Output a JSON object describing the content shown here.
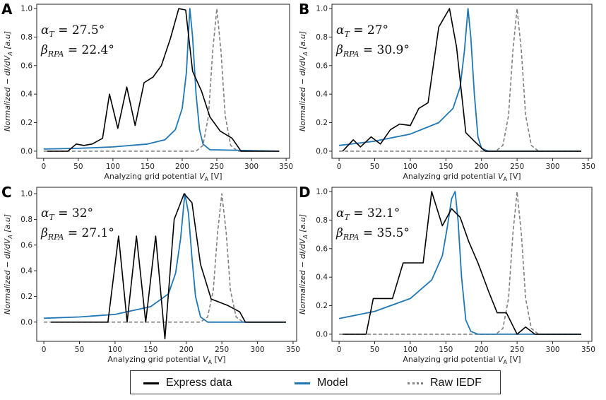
{
  "legend": {
    "express_label": "Express data",
    "model_label": "Model",
    "raw_label": "Raw IEDF",
    "express_color": "#000000",
    "model_color": "#1f77b4",
    "raw_color": "#808080"
  },
  "chart_data": [
    {
      "panel": "A",
      "type": "line",
      "xlabel": "Analyzing grid potential V_A [V]",
      "ylabel": "Normalized − dI/dV_A [a.u]",
      "xlim": [
        -10,
        355
      ],
      "ylim": [
        -0.05,
        1.03
      ],
      "xticks": [
        0,
        50,
        100,
        150,
        200,
        250,
        300,
        350
      ],
      "xtick_labels": [
        "0",
        "50",
        "100",
        "150",
        "200",
        "250",
        "300",
        "350"
      ],
      "yticks": [
        0,
        0.2,
        0.4,
        0.6,
        0.8,
        1.0
      ],
      "ytick_labels": [
        "0.0",
        "0.2",
        "0.4",
        "0.6",
        "0.8",
        "1.0"
      ],
      "annotation": {
        "alpha_label": "α_T",
        "alpha_value": "27.5°",
        "beta_label": "β_RPA",
        "beta_value": "22.4°"
      },
      "series": [
        {
          "name": "Express data",
          "x": [
            5,
            35,
            47,
            58,
            70,
            85,
            95,
            107,
            120,
            132,
            145,
            158,
            170,
            183,
            195,
            205,
            215,
            228,
            240,
            255,
            272,
            285,
            340
          ],
          "y": [
            0,
            0,
            0.05,
            0.04,
            0.05,
            0.09,
            0.4,
            0.16,
            0.45,
            0.18,
            0.48,
            0.52,
            0.6,
            0.79,
            1.0,
            0.99,
            0.56,
            0.42,
            0.24,
            0.14,
            0.09,
            0.0,
            0.0
          ]
        },
        {
          "name": "Model",
          "x": [
            0,
            50,
            100,
            150,
            175,
            190,
            200,
            206,
            211,
            215,
            220,
            225,
            230,
            240,
            340
          ],
          "y": [
            0.015,
            0.02,
            0.03,
            0.05,
            0.08,
            0.15,
            0.3,
            0.55,
            1.0,
            0.8,
            0.4,
            0.15,
            0.05,
            0.01,
            0.0
          ]
        },
        {
          "name": "Raw IEDF",
          "x": [
            0,
            200,
            220,
            230,
            238,
            244,
            250,
            256,
            262,
            270,
            280,
            300,
            340
          ],
          "y": [
            0,
            0,
            0.0,
            0.04,
            0.25,
            0.7,
            1.0,
            0.7,
            0.25,
            0.04,
            0.0,
            0,
            0
          ]
        }
      ]
    },
    {
      "panel": "B",
      "type": "line",
      "xlabel": "Analyzing grid potential V_A [V]",
      "ylabel": "Normalized − dI/dV_A [a.u]",
      "xlim": [
        -10,
        355
      ],
      "ylim": [
        -0.05,
        1.03
      ],
      "xticks": [
        0,
        50,
        100,
        150,
        200,
        250,
        300,
        350
      ],
      "xtick_labels": [
        "0",
        "50",
        "100",
        "150",
        "200",
        "250",
        "300",
        "350"
      ],
      "yticks": [
        0,
        0.2,
        0.4,
        0.6,
        0.8,
        1.0
      ],
      "ytick_labels": [
        "0.0",
        "0.2",
        "0.4",
        "0.6",
        "0.8",
        "1.0"
      ],
      "annotation": {
        "alpha_label": "α_T",
        "alpha_value": "27°",
        "beta_label": "β_RPA",
        "beta_value": "30.9°"
      },
      "series": [
        {
          "name": "Express data",
          "x": [
            5,
            20,
            30,
            45,
            58,
            72,
            85,
            100,
            112,
            125,
            140,
            155,
            165,
            178,
            190,
            205,
            340
          ],
          "y": [
            0,
            0.08,
            0.03,
            0.1,
            0.05,
            0.15,
            0.19,
            0.18,
            0.3,
            0.34,
            0.87,
            1.0,
            0.73,
            0.13,
            0.07,
            0.0,
            0.0
          ]
        },
        {
          "name": "Model",
          "x": [
            0,
            50,
            100,
            140,
            160,
            170,
            176,
            181,
            185,
            190,
            195,
            200,
            210,
            340
          ],
          "y": [
            0.04,
            0.07,
            0.12,
            0.2,
            0.3,
            0.45,
            0.7,
            1.0,
            0.8,
            0.4,
            0.1,
            0.02,
            0.0,
            0.0
          ]
        },
        {
          "name": "Raw IEDF",
          "x": [
            0,
            200,
            220,
            230,
            238,
            244,
            250,
            256,
            262,
            270,
            280,
            300,
            340
          ],
          "y": [
            0,
            0,
            0.0,
            0.04,
            0.25,
            0.7,
            1.0,
            0.7,
            0.25,
            0.04,
            0.0,
            0,
            0
          ]
        }
      ]
    },
    {
      "panel": "C",
      "type": "line",
      "xlabel": "Analyzing grid potential V_A [V]",
      "ylabel": "Normalized − dI/dV_A [a.u]",
      "xlim": [
        -10,
        355
      ],
      "ylim": [
        -0.15,
        1.05
      ],
      "xticks": [
        0,
        50,
        100,
        150,
        200,
        250,
        300,
        350
      ],
      "xtick_labels": [
        "0",
        "50",
        "100",
        "150",
        "200",
        "250",
        "300",
        "350"
      ],
      "yticks": [
        0,
        0.2,
        0.4,
        0.6,
        0.8,
        1.0
      ],
      "ytick_labels": [
        "0.0",
        "0.2",
        "0.4",
        "0.6",
        "0.8",
        "1.0"
      ],
      "annotation": {
        "alpha_label": "α_T",
        "alpha_value": "32°",
        "beta_label": "β_RPA",
        "beta_value": "27.1°"
      },
      "series": [
        {
          "name": "Express data",
          "x": [
            10,
            90,
            105,
            117,
            130,
            143,
            157,
            170,
            183,
            197,
            208,
            220,
            235,
            258,
            275,
            283,
            340
          ],
          "y": [
            0,
            0,
            0.67,
            0,
            0.67,
            0,
            0.67,
            -0.13,
            0.8,
            1.0,
            0.93,
            0.45,
            0.18,
            0.13,
            0.08,
            0.0,
            0.0
          ]
        },
        {
          "name": "Model",
          "x": [
            0,
            50,
            100,
            150,
            175,
            185,
            192,
            198,
            203,
            208,
            213,
            220,
            230,
            340
          ],
          "y": [
            0.03,
            0.04,
            0.06,
            0.12,
            0.22,
            0.38,
            0.65,
            1.0,
            0.85,
            0.5,
            0.2,
            0.04,
            0.0,
            0.0
          ]
        },
        {
          "name": "Raw IEDF",
          "x": [
            0,
            200,
            220,
            230,
            238,
            244,
            250,
            256,
            262,
            270,
            280,
            300,
            340
          ],
          "y": [
            0,
            0,
            0.0,
            0.04,
            0.25,
            0.7,
            1.0,
            0.7,
            0.25,
            0.04,
            0.0,
            0,
            0
          ]
        }
      ]
    },
    {
      "panel": "D",
      "type": "line",
      "xlabel": "Analyzing grid potential V_A [V]",
      "ylabel": "Normalized − dI/dV_A [a.u]",
      "xlim": [
        -10,
        355
      ],
      "ylim": [
        -0.05,
        1.03
      ],
      "xticks": [
        0,
        50,
        100,
        150,
        200,
        250,
        300,
        350
      ],
      "xtick_labels": [
        "0",
        "50",
        "100",
        "150",
        "200",
        "250",
        "300",
        "350"
      ],
      "yticks": [
        0,
        0.2,
        0.4,
        0.6,
        0.8,
        1.0
      ],
      "ytick_labels": [
        "0.0",
        "0.2",
        "0.4",
        "0.6",
        "0.8",
        "1.0"
      ],
      "annotation": {
        "alpha_label": "α_T",
        "alpha_value": "32.1°",
        "beta_label": "β_RPA",
        "beta_value": "35.5°"
      },
      "series": [
        {
          "name": "Express data",
          "x": [
            5,
            38,
            48,
            75,
            90,
            118,
            130,
            145,
            158,
            170,
            182,
            195,
            210,
            222,
            235,
            250,
            262,
            275,
            340
          ],
          "y": [
            0,
            0,
            0.25,
            0.25,
            0.5,
            0.5,
            1.0,
            0.76,
            0.88,
            0.82,
            0.65,
            0.5,
            0.3,
            0.15,
            0.15,
            0.0,
            0.05,
            0.0,
            0.0
          ]
        },
        {
          "name": "Model",
          "x": [
            0,
            50,
            100,
            130,
            145,
            152,
            158,
            163,
            167,
            172,
            178,
            185,
            195,
            340
          ],
          "y": [
            0.11,
            0.16,
            0.25,
            0.38,
            0.55,
            0.75,
            0.95,
            1.0,
            0.8,
            0.4,
            0.1,
            0.02,
            0.0,
            0.0
          ]
        },
        {
          "name": "Raw IEDF",
          "x": [
            0,
            200,
            220,
            230,
            238,
            244,
            250,
            256,
            262,
            270,
            280,
            300,
            340
          ],
          "y": [
            0,
            0,
            0.0,
            0.04,
            0.25,
            0.7,
            1.0,
            0.7,
            0.25,
            0.04,
            0.0,
            0,
            0
          ]
        }
      ]
    }
  ]
}
